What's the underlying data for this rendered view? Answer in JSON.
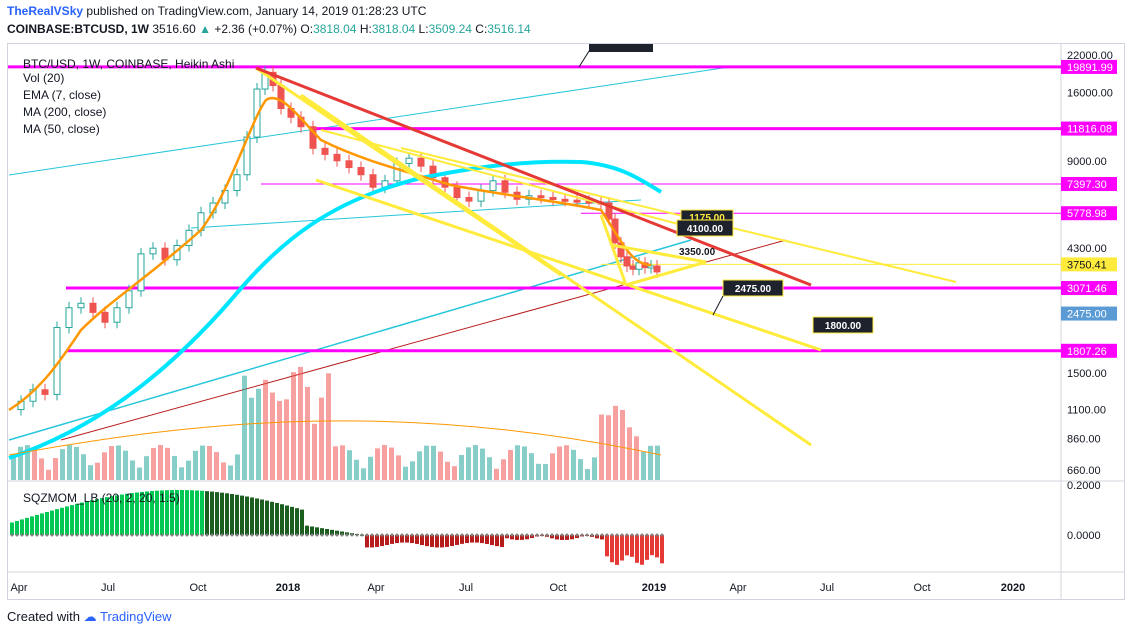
{
  "header": {
    "user": "TheRealVSky",
    "published": "published on TradingView.com, January 14, 2019 01:28:23 UTC",
    "symbol": "COINBASE:BTCUSD, 1W",
    "price": "3516.60",
    "change": "+2.36 (+0.07%)",
    "o_label": "O:",
    "o": "3818.04",
    "h_label": "H:",
    "h": "3818.04",
    "l_label": "L:",
    "l": "3509.24",
    "c_label": "C:",
    "c": "3516.14"
  },
  "legend": {
    "title": "BTC/USD, 1W, COINBASE, Heikin Ashi",
    "items": [
      "Vol (20)",
      "EMA (7, close)",
      "MA (200, close)",
      "MA (50, close)"
    ],
    "osc": "SQZMOM_LB (20, 2, 20, 1.5)"
  },
  "footer": {
    "created": "Created with",
    "brand": "TradingView"
  },
  "colors": {
    "magenta": "#ff00ff",
    "yellow": "#ffeb3b",
    "red": "#e53935",
    "cyan": "#00e5ff",
    "orange": "#ff9800",
    "bull": "#26a69a",
    "bear": "#ef5350"
  },
  "chart_data": {
    "type": "candlestick",
    "scale": "log",
    "y_ticks": [
      "22000.00",
      "16000.00",
      "9000.00",
      "4300.00",
      "1500.00",
      "1100.00",
      "860.00",
      "660.00"
    ],
    "y_tick_values": [
      22000,
      16000,
      9000,
      4300,
      1500,
      1100,
      860,
      660
    ],
    "x_ticks": [
      "Apr",
      "Jul",
      "Oct",
      "2018",
      "Apr",
      "Jul",
      "Oct",
      "2019",
      "Apr",
      "Jul",
      "Oct",
      "2020"
    ],
    "price_labels": [
      {
        "text": "19891.99",
        "value": 19891.99
      },
      {
        "text": "11816.08",
        "value": 11816.08
      },
      {
        "text": "7397.30",
        "value": 7397.3
      },
      {
        "text": "5778.98",
        "value": 5778.98
      },
      {
        "text": "3750.41",
        "value": 3750.41
      },
      {
        "text": "3071.46",
        "value": 3071.46
      },
      {
        "text": "2475.00",
        "value": 2475.0
      },
      {
        "text": "1807.26",
        "value": 1807.26
      }
    ],
    "annotations": [
      "1175.00",
      "4100.00",
      "3350.00",
      "2475.00",
      "1800.00"
    ],
    "osc_ticks": [
      "0.2000",
      "0.0000"
    ],
    "osc_tick_values": [
      0.2,
      0.0
    ],
    "grid": false
  }
}
